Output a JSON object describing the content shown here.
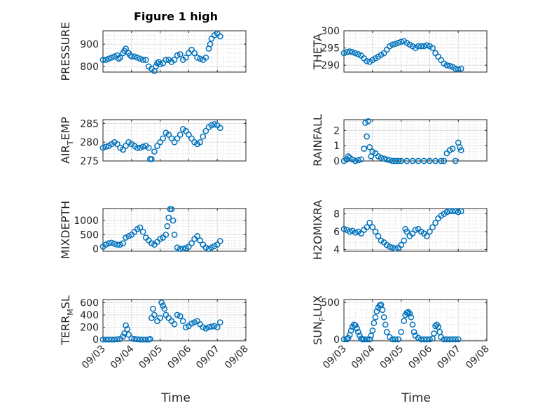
{
  "figure": {
    "title": "Figure 1 high",
    "xlabel_left": "Time",
    "xlabel_right": "Time",
    "x_tick_labels": [
      "09/03",
      "09/04",
      "09/05",
      "09/06",
      "09/07",
      "09/08"
    ],
    "marker_color": "#0072BD",
    "grid_color": "#c8c8c8",
    "axis_color": "#262626"
  },
  "chart_data": [
    {
      "id": "pressure",
      "type": "scatter",
      "ylabel_main": "PRESSURE",
      "ylabel_sub": "",
      "ylabel_tail": "",
      "xlim": [
        3,
        8
      ],
      "ylim": [
        775,
        960
      ],
      "yticks": [
        800,
        900
      ],
      "yticklabels": [
        "800",
        "900"
      ],
      "grid": true,
      "x": [
        3.0,
        3.1,
        3.2,
        3.3,
        3.4,
        3.5,
        3.55,
        3.6,
        3.7,
        3.75,
        3.8,
        3.9,
        3.95,
        4.0,
        4.1,
        4.2,
        4.3,
        4.4,
        4.5,
        4.6,
        4.7,
        4.8,
        4.85,
        4.9,
        4.95,
        5.0,
        5.1,
        5.2,
        5.3,
        5.4,
        5.5,
        5.6,
        5.7,
        5.8,
        5.9,
        6.0,
        6.1,
        6.2,
        6.3,
        6.4,
        6.5,
        6.6,
        6.7,
        6.75,
        6.8,
        6.9,
        7.0,
        7.1
      ],
      "y": [
        830,
        830,
        835,
        840,
        845,
        850,
        835,
        840,
        860,
        870,
        880,
        860,
        850,
        845,
        845,
        840,
        835,
        830,
        830,
        800,
        790,
        780,
        800,
        815,
        820,
        810,
        815,
        830,
        830,
        820,
        830,
        850,
        855,
        830,
        840,
        860,
        875,
        860,
        840,
        835,
        830,
        840,
        880,
        900,
        925,
        940,
        948,
        935
      ]
    },
    {
      "id": "theta",
      "type": "scatter",
      "ylabel_main": "THETA",
      "ylabel_sub": "",
      "ylabel_tail": "",
      "xlim": [
        3,
        8
      ],
      "ylim": [
        288,
        300
      ],
      "yticks": [
        290,
        295,
        300
      ],
      "yticklabels": [
        "290",
        "295",
        "300"
      ],
      "grid": true,
      "x": [
        3.0,
        3.1,
        3.2,
        3.3,
        3.4,
        3.5,
        3.6,
        3.7,
        3.8,
        3.9,
        4.0,
        4.1,
        4.2,
        4.3,
        4.4,
        4.5,
        4.6,
        4.7,
        4.8,
        4.9,
        5.0,
        5.1,
        5.2,
        5.3,
        5.4,
        5.5,
        5.6,
        5.7,
        5.8,
        5.9,
        6.0,
        6.1,
        6.2,
        6.3,
        6.4,
        6.5,
        6.6,
        6.7,
        6.8,
        6.9,
        7.0,
        7.1
      ],
      "y": [
        293.5,
        293.8,
        294.0,
        293.8,
        293.5,
        293.2,
        292.8,
        292.0,
        291.2,
        291.0,
        291.5,
        292.0,
        292.5,
        293.0,
        293.5,
        294.5,
        295.5,
        296.0,
        296.2,
        296.5,
        296.8,
        297.0,
        296.5,
        296.0,
        295.5,
        295.0,
        295.5,
        295.5,
        295.5,
        295.8,
        295.5,
        295.0,
        293.5,
        292.5,
        291.5,
        290.5,
        290.0,
        289.8,
        289.5,
        289.0,
        288.8,
        289.0
      ]
    },
    {
      "id": "airtemp",
      "type": "scatter",
      "ylabel_main": "AIR",
      "ylabel_sub": "T",
      "ylabel_tail": "EMP",
      "xlim": [
        3,
        8
      ],
      "ylim": [
        275,
        286
      ],
      "yticks": [
        275,
        280,
        285
      ],
      "yticklabels": [
        "275",
        "280",
        "285"
      ],
      "grid": true,
      "x": [
        3.0,
        3.1,
        3.2,
        3.3,
        3.4,
        3.5,
        3.6,
        3.7,
        3.8,
        3.9,
        4.0,
        4.1,
        4.2,
        4.3,
        4.4,
        4.5,
        4.6,
        4.65,
        4.7,
        4.8,
        4.9,
        5.0,
        5.1,
        5.2,
        5.3,
        5.4,
        5.5,
        5.6,
        5.7,
        5.8,
        5.9,
        6.0,
        6.1,
        6.2,
        6.3,
        6.4,
        6.5,
        6.6,
        6.7,
        6.8,
        6.9,
        7.0,
        7.1
      ],
      "y": [
        278.5,
        278.8,
        279.0,
        279.5,
        280.0,
        279.5,
        278.5,
        278.0,
        279.0,
        280.0,
        279.5,
        279.0,
        278.5,
        278.5,
        278.8,
        279.0,
        278.5,
        275.5,
        275.5,
        277.5,
        279.0,
        280.0,
        281.0,
        282.5,
        282.0,
        281.0,
        280.0,
        281.0,
        282.0,
        283.5,
        283.0,
        282.0,
        281.0,
        280.0,
        279.5,
        280.0,
        281.5,
        283.0,
        284.0,
        284.5,
        284.8,
        284.5,
        283.8
      ]
    },
    {
      "id": "rainfall",
      "type": "scatter",
      "ylabel_main": "RAINFALL",
      "ylabel_sub": "",
      "ylabel_tail": "",
      "xlim": [
        3,
        8
      ],
      "ylim": [
        0,
        2.7
      ],
      "yticks": [
        0,
        1,
        2
      ],
      "yticklabels": [
        "0",
        "1",
        "2"
      ],
      "grid": true,
      "x": [
        3.0,
        3.1,
        3.15,
        3.2,
        3.3,
        3.4,
        3.5,
        3.6,
        3.7,
        3.75,
        3.8,
        3.85,
        3.9,
        3.95,
        4.0,
        4.1,
        4.2,
        4.3,
        4.4,
        4.5,
        4.6,
        4.7,
        4.8,
        4.9,
        5.0,
        5.2,
        5.4,
        5.6,
        5.8,
        6.0,
        6.2,
        6.4,
        6.5,
        6.6,
        6.7,
        6.8,
        6.9,
        7.0,
        7.05,
        7.1
      ],
      "y": [
        0,
        0.1,
        0.3,
        0.2,
        0.1,
        0,
        0.05,
        0.1,
        0.8,
        2.5,
        1.6,
        2.6,
        0.9,
        0.3,
        0.6,
        0.5,
        0.3,
        0.2,
        0.15,
        0.1,
        0.05,
        0,
        0,
        0,
        0,
        0,
        0,
        0,
        0,
        0,
        0,
        0,
        0,
        0.5,
        0.7,
        0.8,
        0,
        1.2,
        0.9,
        0.7
      ]
    },
    {
      "id": "mixdepth",
      "type": "scatter",
      "ylabel_main": "MIXDEPTH",
      "ylabel_sub": "",
      "ylabel_tail": "",
      "xlim": [
        3,
        8
      ],
      "ylim": [
        -80,
        1420
      ],
      "yticks": [
        0,
        500,
        1000
      ],
      "yticklabels": [
        "0",
        "500",
        "1000"
      ],
      "grid": true,
      "x": [
        3.0,
        3.1,
        3.2,
        3.3,
        3.4,
        3.5,
        3.6,
        3.7,
        3.8,
        3.9,
        4.0,
        4.1,
        4.2,
        4.3,
        4.4,
        4.5,
        4.6,
        4.7,
        4.8,
        4.9,
        5.0,
        5.1,
        5.2,
        5.25,
        5.3,
        5.35,
        5.4,
        5.45,
        5.5,
        5.6,
        5.7,
        5.8,
        5.9,
        6.0,
        6.1,
        6.2,
        6.3,
        6.4,
        6.5,
        6.6,
        6.7,
        6.8,
        6.9,
        7.0,
        7.1
      ],
      "y": [
        80,
        150,
        200,
        220,
        180,
        150,
        150,
        200,
        400,
        450,
        500,
        600,
        700,
        750,
        600,
        400,
        300,
        200,
        150,
        250,
        350,
        400,
        500,
        800,
        1100,
        1400,
        1400,
        1000,
        500,
        50,
        0,
        10,
        30,
        80,
        200,
        350,
        450,
        300,
        150,
        50,
        0,
        50,
        100,
        150,
        280
      ]
    },
    {
      "id": "h2omixra",
      "type": "scatter",
      "ylabel_main": "H2OMIXRA",
      "ylabel_sub": "",
      "ylabel_tail": "",
      "xlim": [
        3,
        8
      ],
      "ylim": [
        3.8,
        8.6
      ],
      "yticks": [
        4,
        6,
        8
      ],
      "yticklabels": [
        "4",
        "6",
        "8"
      ],
      "grid": true,
      "x": [
        3.0,
        3.1,
        3.2,
        3.3,
        3.4,
        3.5,
        3.6,
        3.7,
        3.8,
        3.9,
        4.0,
        4.1,
        4.2,
        4.3,
        4.4,
        4.5,
        4.6,
        4.7,
        4.8,
        4.9,
        5.0,
        5.1,
        5.15,
        5.2,
        5.3,
        5.4,
        5.5,
        5.6,
        5.7,
        5.8,
        5.9,
        6.0,
        6.1,
        6.2,
        6.3,
        6.4,
        6.5,
        6.6,
        6.7,
        6.8,
        6.9,
        7.0,
        7.1
      ],
      "y": [
        6.3,
        6.2,
        6.0,
        6.1,
        5.9,
        6.0,
        5.8,
        6.2,
        6.5,
        7.0,
        6.5,
        6.0,
        5.5,
        5.0,
        4.8,
        4.5,
        4.3,
        4.2,
        4.1,
        4.2,
        4.5,
        5.0,
        6.3,
        6.0,
        5.5,
        5.8,
        6.2,
        6.3,
        6.0,
        5.8,
        5.5,
        6.0,
        6.5,
        7.0,
        7.5,
        7.8,
        8.0,
        8.2,
        8.3,
        8.3,
        8.3,
        8.2,
        8.3
      ]
    },
    {
      "id": "terrmsl",
      "type": "scatter",
      "ylabel_main": "TERR",
      "ylabel_sub": "M",
      "ylabel_tail": "SL",
      "xlim": [
        3,
        8
      ],
      "ylim": [
        -20,
        650
      ],
      "yticks": [
        0,
        200,
        400,
        600
      ],
      "yticklabels": [
        "0",
        "200",
        "400",
        "600"
      ],
      "grid": true,
      "x": [
        3.0,
        3.1,
        3.2,
        3.3,
        3.4,
        3.5,
        3.6,
        3.7,
        3.75,
        3.8,
        3.85,
        3.9,
        4.0,
        4.1,
        4.2,
        4.3,
        4.4,
        4.5,
        4.6,
        4.65,
        4.7,
        4.75,
        4.8,
        4.9,
        5.0,
        5.05,
        5.1,
        5.15,
        5.2,
        5.3,
        5.4,
        5.5,
        5.6,
        5.7,
        5.8,
        5.9,
        6.0,
        6.1,
        6.2,
        6.3,
        6.4,
        6.5,
        6.6,
        6.7,
        6.8,
        6.9,
        7.0,
        7.1
      ],
      "y": [
        0,
        0,
        0,
        0,
        0,
        5,
        10,
        50,
        100,
        230,
        170,
        80,
        20,
        10,
        5,
        0,
        0,
        0,
        0,
        10,
        350,
        500,
        400,
        300,
        350,
        600,
        550,
        500,
        400,
        350,
        300,
        250,
        400,
        380,
        300,
        200,
        220,
        260,
        280,
        300,
        250,
        200,
        180,
        200,
        210,
        220,
        200,
        280
      ]
    },
    {
      "id": "sunflux",
      "type": "scatter",
      "ylabel_main": "SUN",
      "ylabel_sub": "F",
      "ylabel_tail": "LUX",
      "xlim": [
        3,
        8
      ],
      "ylim": [
        -20,
        540
      ],
      "yticks": [
        0,
        500
      ],
      "yticklabels": [
        "0",
        "500"
      ],
      "grid": true,
      "x": [
        3.0,
        3.1,
        3.15,
        3.2,
        3.25,
        3.3,
        3.35,
        3.4,
        3.45,
        3.5,
        3.55,
        3.6,
        3.65,
        3.7,
        3.8,
        3.9,
        3.95,
        4.0,
        4.05,
        4.1,
        4.15,
        4.2,
        4.25,
        4.3,
        4.35,
        4.4,
        4.45,
        4.5,
        4.6,
        4.7,
        4.8,
        4.9,
        5.0,
        5.1,
        5.15,
        5.2,
        5.25,
        5.3,
        5.35,
        5.4,
        5.45,
        5.5,
        5.6,
        5.7,
        5.8,
        5.9,
        6.0,
        6.1,
        6.15,
        6.2,
        6.25,
        6.3,
        6.35,
        6.4,
        6.5,
        6.6,
        6.7,
        6.8,
        6.9,
        7.0
      ],
      "y": [
        0,
        0,
        20,
        60,
        120,
        170,
        200,
        190,
        150,
        100,
        50,
        10,
        0,
        0,
        0,
        0,
        50,
        120,
        220,
        300,
        380,
        430,
        460,
        470,
        400,
        300,
        200,
        100,
        30,
        0,
        0,
        0,
        100,
        250,
        330,
        360,
        370,
        350,
        300,
        200,
        100,
        50,
        20,
        0,
        0,
        0,
        0,
        10,
        80,
        180,
        200,
        170,
        100,
        30,
        0,
        0,
        0,
        0,
        0,
        0
      ]
    }
  ]
}
